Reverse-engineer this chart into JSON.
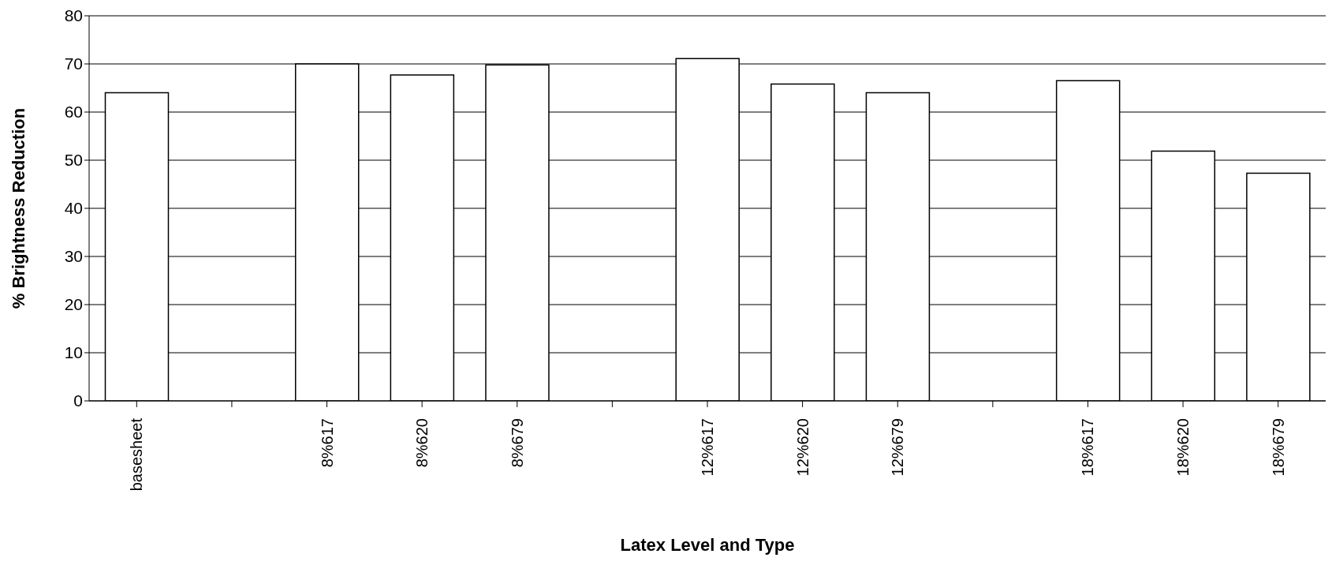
{
  "chart_data": {
    "type": "bar",
    "xlabel": "Latex Level and Type",
    "ylabel": "% Brightness Reduction",
    "categories": [
      "basesheet",
      null,
      "8%617",
      "8%620",
      "8%679",
      null,
      "12%617",
      "12%620",
      "12%679",
      null,
      "18%617",
      "18%620",
      "18%679"
    ],
    "values": [
      64,
      null,
      70,
      67.7,
      69.8,
      null,
      71.1,
      65.8,
      64,
      null,
      66.5,
      51.9,
      47.3
    ],
    "color": "#ffffff",
    "ylim": [
      0,
      80
    ],
    "yticks": [
      0,
      10,
      20,
      30,
      40,
      50,
      60,
      70,
      80
    ],
    "grid": "y"
  }
}
